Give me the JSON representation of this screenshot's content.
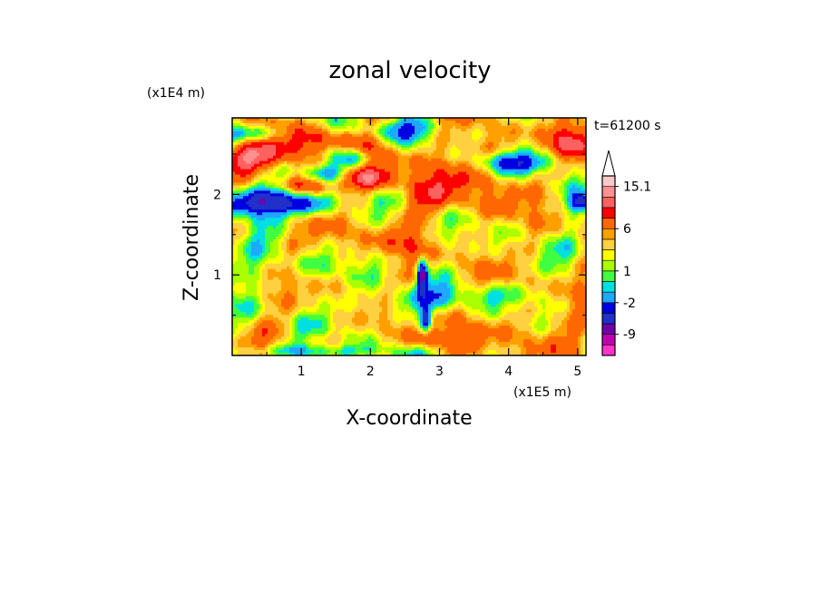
{
  "chart_data": {
    "type": "heatmap",
    "title": "zonal velocity",
    "time_label": "t=61200 s",
    "xlabel": "X-coordinate",
    "ylabel": "Z-coordinate",
    "x_unit": "(x1E5 m)",
    "y_unit": "(x1E4 m)",
    "xlim": [
      0,
      5.12
    ],
    "ylim": [
      0,
      2.95
    ],
    "x_ticks": [
      "1",
      "2",
      "3",
      "4",
      "5"
    ],
    "y_ticks": [
      "1",
      "2"
    ],
    "x_tick_values": [
      1,
      2,
      3,
      4,
      5
    ],
    "y_tick_values": [
      1,
      2
    ],
    "colorbar": {
      "labels": [
        "15.1",
        "6",
        "1",
        "-2",
        "-9"
      ],
      "label_values": [
        15.1,
        6,
        1,
        -2,
        -9
      ],
      "colors": [
        "#ff33cc",
        "#c000b0",
        "#7000a8",
        "#2030c8",
        "#0000e0",
        "#1fa8ff",
        "#00e0e0",
        "#40ff40",
        "#aaff00",
        "#ffff00",
        "#ffd040",
        "#ffa000",
        "#ff6800",
        "#ff0000",
        "#ff6060",
        "#ff9090",
        "#ffc8c8",
        "#ffffff"
      ],
      "extend": "max"
    },
    "contour_levels": [
      -15,
      -12,
      -9,
      -6,
      -4,
      -2,
      -1,
      0,
      1,
      2,
      3,
      4,
      6,
      8,
      10,
      12,
      15.1
    ],
    "field_description": "Wavy horizontal bands: positive (orange/red) band at z~2.4 and z~2.0-1.8 in west, strong negative (blue) band at z~1.9 for x<1.5, negative streaks near x~2.8 at z~1.0 and z~0.4, mostly light positive (yellow/green) elsewhere."
  }
}
